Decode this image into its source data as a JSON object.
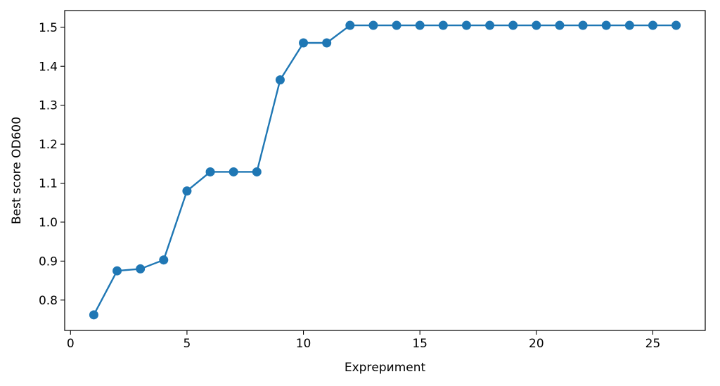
{
  "chart_data": {
    "type": "line",
    "title": "",
    "xlabel": "Exprериment",
    "ylabel": "Best score OD600",
    "xlim": [
      -0.25,
      27.25
    ],
    "ylim": [
      0.722,
      1.543
    ],
    "xticks": [
      0,
      5,
      10,
      15,
      20,
      25
    ],
    "yticks": [
      0.8,
      0.9,
      1.0,
      1.1,
      1.2,
      1.3,
      1.4,
      1.5
    ],
    "xtick_labels": [
      "0",
      "5",
      "10",
      "15",
      "20",
      "25"
    ],
    "ytick_labels": [
      "0.8",
      "0.9",
      "1.0",
      "1.1",
      "1.2",
      "1.3",
      "1.4",
      "1.5"
    ],
    "grid": false,
    "legend": "none",
    "series": [
      {
        "color": "#1f77b4",
        "marker": "circle",
        "x": [
          1,
          2,
          3,
          4,
          5,
          6,
          7,
          8,
          9,
          10,
          11,
          12,
          13,
          14,
          15,
          16,
          17,
          18,
          19,
          20,
          21,
          22,
          23,
          24,
          25,
          26
        ],
        "y": [
          0.762,
          0.875,
          0.88,
          0.903,
          1.08,
          1.129,
          1.129,
          1.129,
          1.365,
          1.46,
          1.46,
          1.505,
          1.505,
          1.505,
          1.505,
          1.505,
          1.505,
          1.505,
          1.505,
          1.505,
          1.505,
          1.505,
          1.505,
          1.505,
          1.505,
          1.505
        ]
      }
    ]
  }
}
